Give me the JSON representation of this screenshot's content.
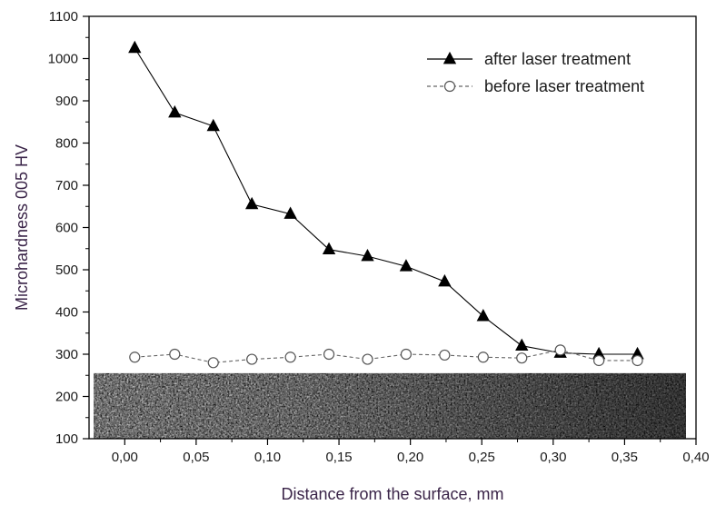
{
  "chart_data": {
    "type": "line",
    "xlabel": "Distance from the surface, mm",
    "ylabel": "Microhardness 005 HV",
    "xlim": [
      -0.025,
      0.4
    ],
    "ylim": [
      100,
      1100
    ],
    "x_ticks": [
      0.0,
      0.05,
      0.1,
      0.15,
      0.2,
      0.25,
      0.3,
      0.35,
      0.4
    ],
    "x_tick_labels": [
      "0,00",
      "0,05",
      "0,10",
      "0,15",
      "0,20",
      "0,25",
      "0,30",
      "0,35",
      "0,40"
    ],
    "y_ticks": [
      100,
      200,
      300,
      400,
      500,
      600,
      700,
      800,
      900,
      1000,
      1100
    ],
    "y_tick_labels": [
      "100",
      "200",
      "300",
      "400",
      "500",
      "600",
      "700",
      "800",
      "900",
      "1000",
      "1100"
    ],
    "legend_position": "top-right",
    "inset_image": "micrograph-cross-section",
    "inset_y_range": [
      100,
      255
    ],
    "series": [
      {
        "name": "after laser treatment",
        "marker": "filled-triangle",
        "line": "solid",
        "color": "#000000",
        "x": [
          0.007,
          0.035,
          0.062,
          0.089,
          0.116,
          0.143,
          0.17,
          0.197,
          0.224,
          0.251,
          0.278,
          0.305,
          0.332,
          0.359
        ],
        "y": [
          1025,
          872,
          840,
          655,
          632,
          548,
          532,
          508,
          472,
          390,
          320,
          303,
          300,
          300
        ]
      },
      {
        "name": "before laser treatment",
        "marker": "open-circle",
        "line": "dashed",
        "color": "#000000",
        "x": [
          0.007,
          0.035,
          0.062,
          0.089,
          0.116,
          0.143,
          0.17,
          0.197,
          0.224,
          0.251,
          0.278,
          0.305,
          0.332,
          0.359
        ],
        "y": [
          293,
          300,
          280,
          288,
          293,
          300,
          288,
          300,
          298,
          293,
          291,
          310,
          285,
          285
        ]
      }
    ]
  }
}
